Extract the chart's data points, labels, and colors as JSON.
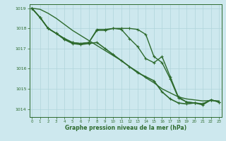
{
  "background_color": "#cde8ee",
  "grid_color": "#b0d4da",
  "line_color": "#2d6a2d",
  "xlabel": "Graphe pression niveau de la mer (hPa)",
  "ylim": [
    1013.6,
    1019.2
  ],
  "xlim": [
    -0.3,
    23.3
  ],
  "yticks": [
    1014,
    1015,
    1016,
    1017,
    1018,
    1019
  ],
  "xticks": [
    0,
    1,
    2,
    3,
    4,
    5,
    6,
    7,
    8,
    9,
    10,
    11,
    12,
    13,
    14,
    15,
    16,
    17,
    18,
    19,
    20,
    21,
    22,
    23
  ],
  "series": [
    {
      "x": [
        0,
        1,
        2,
        3,
        4,
        5,
        6,
        7,
        8,
        9,
        10,
        11,
        12,
        13,
        14,
        15,
        16,
        17,
        18,
        19,
        20,
        21,
        22,
        23
      ],
      "y": [
        1019.0,
        1018.95,
        1018.75,
        1018.5,
        1018.2,
        1017.9,
        1017.65,
        1017.4,
        1017.15,
        1016.9,
        1016.65,
        1016.4,
        1016.1,
        1015.85,
        1015.55,
        1015.3,
        1015.0,
        1014.8,
        1014.6,
        1014.5,
        1014.45,
        1014.4,
        1014.42,
        1014.4
      ],
      "has_markers": false,
      "linewidth": 1.0
    },
    {
      "x": [
        0,
        1,
        2,
        3,
        4,
        5,
        6,
        7,
        8,
        9,
        10,
        11,
        12,
        13,
        14,
        15,
        16,
        17,
        18,
        19,
        20,
        21,
        22,
        23
      ],
      "y": [
        1019.0,
        1018.55,
        1018.0,
        1017.75,
        1017.5,
        1017.3,
        1017.25,
        1017.3,
        1017.95,
        1017.95,
        1018.0,
        1017.95,
        1017.5,
        1017.1,
        1016.5,
        1016.3,
        1016.6,
        1015.6,
        1014.6,
        1014.35,
        1014.3,
        1014.25,
        1014.45,
        1014.35
      ],
      "has_markers": true,
      "linewidth": 1.0
    },
    {
      "x": [
        0,
        1,
        2,
        3,
        4,
        5,
        6,
        7,
        8,
        9,
        10,
        11,
        12,
        13,
        14,
        15,
        16,
        17,
        18,
        19,
        20,
        21,
        22,
        23
      ],
      "y": [
        1019.0,
        1018.55,
        1018.0,
        1017.75,
        1017.5,
        1017.3,
        1017.25,
        1017.3,
        1017.9,
        1017.9,
        1018.0,
        1018.0,
        1018.0,
        1017.95,
        1017.7,
        1016.6,
        1016.3,
        1015.5,
        1014.55,
        1014.35,
        1014.3,
        1014.2,
        1014.45,
        1014.35
      ],
      "has_markers": true,
      "linewidth": 1.0
    },
    {
      "x": [
        0,
        1,
        2,
        3,
        4,
        5,
        6,
        7,
        8,
        9,
        10,
        11,
        12,
        13,
        14,
        15,
        16,
        17,
        18,
        19,
        20,
        21,
        22,
        23
      ],
      "y": [
        1019.0,
        1018.55,
        1018.0,
        1017.75,
        1017.45,
        1017.25,
        1017.2,
        1017.25,
        1017.3,
        1017.0,
        1016.7,
        1016.4,
        1016.1,
        1015.8,
        1015.6,
        1015.4,
        1014.85,
        1014.5,
        1014.3,
        1014.25,
        1014.3,
        1014.25,
        1014.45,
        1014.35
      ],
      "has_markers": true,
      "linewidth": 1.2
    }
  ]
}
